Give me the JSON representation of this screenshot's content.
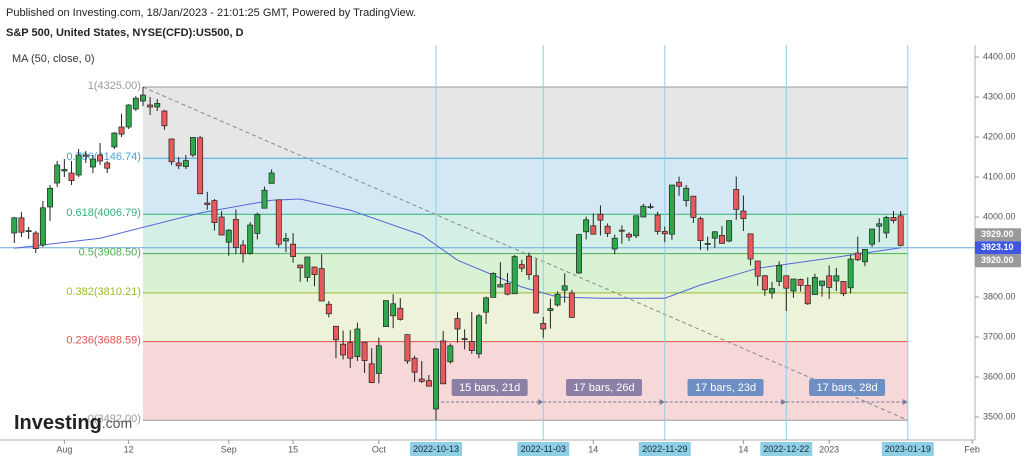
{
  "header": {
    "published": "Published on Investing.com, 18/Jan/2023 - 21:01:25 GMT, Powered by TradingView.",
    "symbol": "S&P 500, United States, NYSE(CFD):US500, D"
  },
  "logo": {
    "name": "Investing",
    "suffix": ".com"
  },
  "chart_data": {
    "type": "candlestick",
    "up_color": "#2ea84a",
    "down_color": "#e8595b",
    "x": [
      0,
      1,
      2,
      3,
      4,
      5,
      6,
      7,
      8,
      9,
      10,
      11,
      12,
      13,
      14,
      15,
      16,
      17,
      18,
      19,
      20,
      21,
      22,
      23,
      24,
      25,
      26,
      27,
      28,
      29,
      30,
      31,
      32,
      33,
      34,
      35,
      36,
      37,
      38,
      39,
      40,
      41,
      42,
      43,
      44,
      45,
      46,
      47,
      48,
      49,
      50,
      51,
      52,
      53,
      54,
      55,
      56,
      57,
      58,
      59,
      60,
      61,
      62,
      63,
      64,
      65,
      66,
      67,
      68,
      69,
      70,
      71,
      72,
      73,
      74,
      75,
      76,
      77,
      78,
      79,
      80,
      81,
      82,
      83,
      84,
      85,
      86,
      87,
      88,
      89,
      90,
      91,
      92,
      93,
      94,
      95,
      96,
      97,
      98,
      99,
      100,
      101,
      102,
      103,
      104,
      105,
      106,
      107,
      108,
      109,
      110,
      111,
      112,
      113,
      114,
      115,
      116,
      117,
      118,
      119,
      120,
      121,
      122,
      123,
      124
    ],
    "open": [
      3960,
      3998,
      3965,
      3960,
      3930,
      4025,
      4085,
      4115,
      4110,
      4105,
      4155,
      4125,
      4155,
      4135,
      4175,
      4225,
      4225,
      4270,
      4290,
      4280,
      4275,
      4265,
      4195,
      4135,
      4126,
      4155,
      4198,
      4035,
      4041,
      4000,
      3937,
      3994,
      3930,
      3909,
      3959,
      4022,
      4084,
      4043,
      3940,
      3932,
      3880,
      3849,
      3875,
      3871,
      3782,
      3727,
      3682,
      3686,
      3651,
      3687,
      3633,
      3609,
      3726,
      3753,
      3772,
      3706,
      3647,
      3595,
      3591,
      3520,
      3690,
      3638,
      3746,
      3696,
      3689,
      3658,
      3762,
      3799,
      3825,
      3834,
      3808,
      3881,
      3902,
      3853,
      3734,
      3766,
      3780,
      3817,
      3810,
      3860,
      3963,
      3978,
      4007,
      3977,
      3920,
      3967,
      3957,
      3953,
      4000,
      4024,
      4005,
      3964,
      3957,
      4087,
      4041,
      4052,
      3996,
      3934,
      3947,
      3954,
      3940,
      4069,
      4015,
      3958,
      3890,
      3853,
      3810,
      3839,
      3853,
      3815,
      3844,
      3829,
      3806,
      3829,
      3853,
      3840,
      3839,
      3823,
      3910,
      3888,
      3932,
      3977,
      3960,
      3999,
      4003
    ],
    "high": [
      4000,
      4012,
      3975,
      3965,
      4040,
      4080,
      4140,
      4145,
      4140,
      4170,
      4165,
      4155,
      4185,
      4140,
      4212,
      4258,
      4282,
      4302,
      4325,
      4300,
      4295,
      4268,
      4196,
      4150,
      4155,
      4200,
      4203,
      4063,
      4045,
      4015,
      3970,
      4019,
      3942,
      3987,
      4011,
      4076,
      4119,
      4044,
      3960,
      3960,
      3880,
      3900,
      3876,
      3907,
      3790,
      3727,
      3716,
      3717,
      3736,
      3687,
      3672,
      3698,
      3791,
      3807,
      3797,
      3707,
      3653,
      3640,
      3605,
      3672,
      3715,
      3684,
      3762,
      3719,
      3762,
      3758,
      3801,
      3862,
      3887,
      3860,
      3905,
      3893,
      3911,
      3895,
      3750,
      3796,
      3814,
      3859,
      3818,
      3958,
      4001,
      4009,
      4029,
      3984,
      3956,
      3979,
      3962,
      4004,
      4033,
      4034,
      4013,
      3976,
      4080,
      4101,
      4080,
      4053,
      4001,
      3951,
      3965,
      3977,
      3991,
      4101,
      4054,
      3958,
      3890,
      3855,
      3838,
      3889,
      3853,
      3845,
      3846,
      3849,
      3858,
      3840,
      3879,
      3873,
      3839,
      3906,
      3951,
      3919,
      3970,
      3997,
      4003,
      4015,
      4015
    ],
    "low": [
      3935,
      3950,
      3945,
      3910,
      3925,
      3990,
      4075,
      4100,
      4080,
      4100,
      4135,
      4110,
      4130,
      4110,
      4170,
      4200,
      4220,
      4265,
      4277,
      4255,
      4265,
      4218,
      4130,
      4120,
      4120,
      4150,
      4057,
      4018,
      3966,
      3954,
      3903,
      3907,
      3886,
      3906,
      3944,
      4022,
      4084,
      3924,
      3912,
      3886,
      3838,
      3838,
      3827,
      3790,
      3749,
      3647,
      3644,
      3623,
      3640,
      3610,
      3585,
      3584,
      3726,
      3722,
      3741,
      3633,
      3588,
      3585,
      3577,
      3492,
      3582,
      3633,
      3686,
      3669,
      3658,
      3647,
      3733,
      3799,
      3824,
      3804,
      3808,
      3863,
      3843,
      3759,
      3698,
      3721,
      3776,
      3786,
      3748,
      3858,
      3944,
      3956,
      3954,
      3950,
      3907,
      3933,
      3940,
      3947,
      3999,
      4020,
      3956,
      3937,
      3943,
      4053,
      4026,
      3985,
      3918,
      3916,
      3923,
      3933,
      3937,
      3993,
      3965,
      3879,
      3828,
      3803,
      3796,
      3827,
      3765,
      3798,
      3814,
      3780,
      3806,
      3801,
      3795,
      3815,
      3802,
      3809,
      3890,
      3877,
      3925,
      3937,
      3947,
      3984,
      3927
    ],
    "close": [
      3998,
      3962,
      3966,
      3921,
      4023,
      4072,
      4130,
      4119,
      4091,
      4155,
      4152,
      4145,
      4140,
      4122,
      4210,
      4207,
      4280,
      4297,
      4305,
      4275,
      4284,
      4228,
      4138,
      4128,
      4141,
      4199,
      4058,
      4031,
      3986,
      3955,
      3967,
      3924,
      3908,
      3980,
      4006,
      4067,
      4110,
      3932,
      3946,
      3901,
      3873,
      3900,
      3856,
      3790,
      3758,
      3693,
      3655,
      3647,
      3720,
      3641,
      3586,
      3678,
      3791,
      3783,
      3744,
      3640,
      3612,
      3589,
      3577,
      3670,
      3583,
      3678,
      3720,
      3695,
      3666,
      3753,
      3798,
      3859,
      3831,
      3807,
      3901,
      3872,
      3856,
      3760,
      3720,
      3771,
      3807,
      3828,
      3749,
      3956,
      3993,
      3957,
      3992,
      3959,
      3947,
      3965,
      3950,
      4003,
      4027,
      4026,
      3964,
      3958,
      4080,
      4077,
      4072,
      3999,
      3941,
      3934,
      3963,
      3934,
      3991,
      4019,
      3996,
      3895,
      3852,
      3818,
      3821,
      3879,
      3822,
      3845,
      3829,
      3783,
      3849,
      3840,
      3824,
      3853,
      3808,
      3895,
      3893,
      3919,
      3970,
      3983,
      3999,
      3991,
      3929
    ],
    "ma": {
      "name": "MA (50, close, 0)",
      "color": "#5566d8",
      "x": [
        0,
        12,
        26,
        36,
        40,
        47,
        57,
        62,
        71,
        76,
        82,
        91,
        96,
        104,
        114,
        124
      ],
      "values": [
        3922,
        3947,
        4010,
        4042,
        4045,
        4017,
        3955,
        3892,
        3825,
        3800,
        3797,
        3797,
        3830,
        3872,
        3897,
        3923
      ]
    },
    "fib": {
      "start_x": 18,
      "end_x": 125,
      "levels": [
        {
          "label": "1(4325.00)",
          "value": 4325.0,
          "color": "#9a9a9a",
          "fill": "#e6e6e6"
        },
        {
          "label": "0.786(4146.74)",
          "value": 4146.74,
          "color": "#45a3dc",
          "fill": "#d3e8f4"
        },
        {
          "label": "0.618(4006.79)",
          "value": 4006.79,
          "color": "#30b07a",
          "fill": "#d4f0e6"
        },
        {
          "label": "0.5(3908.50)",
          "value": 3908.5,
          "color": "#4cae4c",
          "fill": "#d9f2d3"
        },
        {
          "label": "0.382(3810.21)",
          "value": 3810.21,
          "color": "#9cbc2e",
          "fill": "#edf3d8"
        },
        {
          "label": "0.236(3688.59)",
          "value": 3688.59,
          "color": "#e05252",
          "fill": "#f6d8d8"
        },
        {
          "label": "0(3492.00)",
          "value": 3492.0,
          "color": "#9a9a9a"
        }
      ]
    },
    "markers": [
      {
        "x": 59,
        "label": "2022-10-13"
      },
      {
        "x": 74,
        "label": "2022-11-03"
      },
      {
        "x": 91,
        "label": "2022-11-29"
      },
      {
        "x": 108,
        "label": "2022-12-22"
      },
      {
        "x": 125,
        "label": "2023-01-19"
      }
    ],
    "ranges": [
      {
        "label": "15 bars, 21d",
        "color": "#8b7fa6"
      },
      {
        "label": "17 bars, 26d",
        "color": "#8b7fa6"
      },
      {
        "label": "17 bars, 23d",
        "color": "#6d8fc4"
      },
      {
        "label": "17 bars, 28d",
        "color": "#6d8fc4"
      }
    ],
    "price_labels": [
      {
        "label": "3929.00",
        "value": 3929.0,
        "color": "#9a9a9a"
      },
      {
        "label": "3923.10",
        "value": 3923.1,
        "color": "#3f56e0",
        "line": true
      },
      {
        "label": "3920.00",
        "value": 3920.0,
        "color": "#9a9a9a"
      }
    ],
    "xlim": [
      -2,
      134.4
    ],
    "xticks": [
      {
        "value": 7,
        "label": "Aug"
      },
      {
        "value": 16,
        "label": "12"
      },
      {
        "value": 30,
        "label": "Sep"
      },
      {
        "value": 39,
        "label": "15"
      },
      {
        "value": 51,
        "label": "Oct"
      },
      {
        "value": 81,
        "label": "14"
      },
      {
        "value": 102,
        "label": "14"
      },
      {
        "value": 114,
        "label": "2023"
      },
      {
        "value": 134,
        "label": "Feb"
      }
    ],
    "ylim": [
      3442.5,
      4430
    ],
    "yticks": [
      {
        "value": 3500,
        "label": "3500.00"
      },
      {
        "value": 3600,
        "label": "3600.00"
      },
      {
        "value": 3700,
        "label": "3700.00"
      },
      {
        "value": 3800,
        "label": "3800.00"
      },
      {
        "value": 3900,
        "label": "3900.00"
      },
      {
        "value": 4000,
        "label": "4000.00"
      },
      {
        "value": 4100,
        "label": "4100.00"
      },
      {
        "value": 4200,
        "label": "4200.00"
      },
      {
        "value": 4300,
        "label": "4300.00"
      },
      {
        "value": 4400,
        "label": "4400.00"
      }
    ]
  }
}
